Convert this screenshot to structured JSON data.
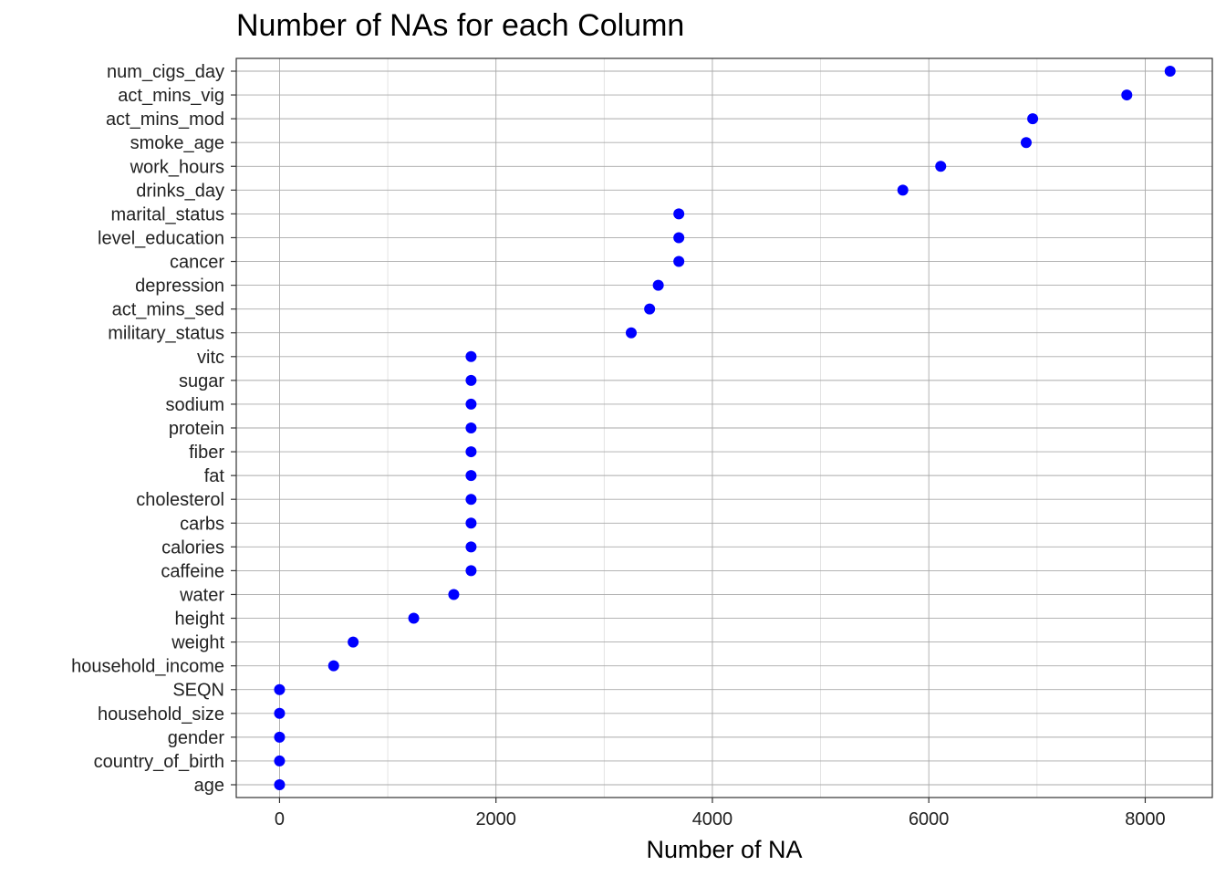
{
  "chart_data": {
    "type": "scatter",
    "title": "Number of NAs for each Column",
    "xlabel": "Number of NA",
    "ylabel": "",
    "xlim": [
      -400,
      8620
    ],
    "x_ticks": [
      0,
      2000,
      4000,
      6000,
      8000
    ],
    "x_minor_ticks": [
      1000,
      3000,
      5000,
      7000
    ],
    "grid": true,
    "legend": "none",
    "point_color": "#0000ff",
    "categories": [
      "num_cigs_day",
      "act_mins_vig",
      "act_mins_mod",
      "smoke_age",
      "work_hours",
      "drinks_day",
      "marital_status",
      "level_education",
      "cancer",
      "depression",
      "act_mins_sed",
      "military_status",
      "vitc",
      "sugar",
      "sodium",
      "protein",
      "fiber",
      "fat",
      "cholesterol",
      "carbs",
      "calories",
      "caffeine",
      "water",
      "height",
      "weight",
      "household_income",
      "SEQN",
      "household_size",
      "gender",
      "country_of_birth",
      "age"
    ],
    "values": [
      8230,
      7830,
      6960,
      6900,
      6110,
      5760,
      3690,
      3690,
      3690,
      3500,
      3420,
      3250,
      1770,
      1770,
      1770,
      1770,
      1770,
      1770,
      1770,
      1770,
      1770,
      1770,
      1610,
      1240,
      680,
      500,
      0,
      0,
      0,
      0,
      0
    ]
  }
}
